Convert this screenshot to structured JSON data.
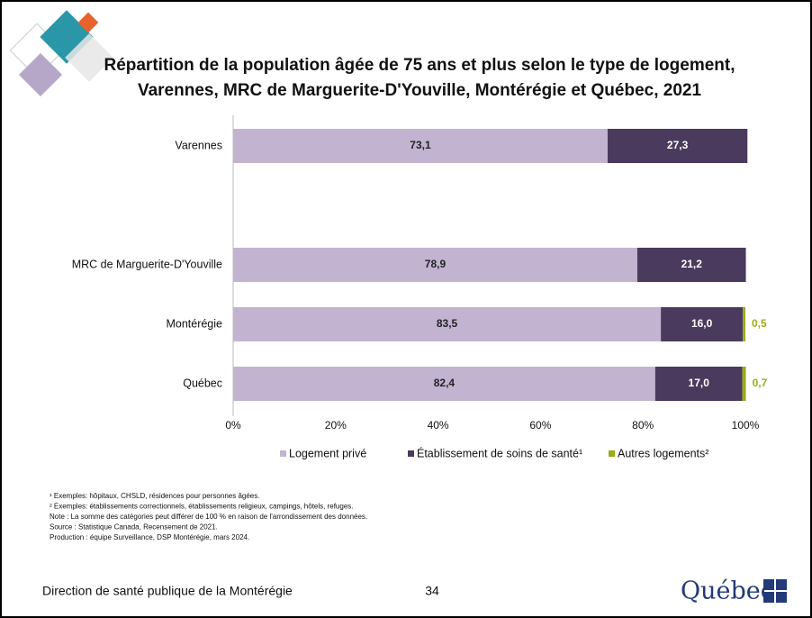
{
  "header": {
    "title_lines": [
      "Répartition de la population âgée de 75 ans et plus selon le type de logement,",
      "Varennes, MRC de Marguerite-D'Youville, Montérégie et Québec, 2021"
    ]
  },
  "chart_data": {
    "type": "stacked-bar-horizontal",
    "categories": [
      "Varennes",
      null,
      "MRC de Marguerite-D'Youville",
      "Montérégie",
      "Québec"
    ],
    "series": [
      {
        "name": "Logement privé",
        "color": "#c2b4d1",
        "values": [
          73.1,
          null,
          78.9,
          83.5,
          82.4
        ],
        "value_labels": [
          "73,1",
          null,
          "78,9",
          "83,5",
          "82,4"
        ],
        "label_color": "#222222"
      },
      {
        "name": "Établissement de soins de santé¹",
        "color": "#4a3a5e",
        "values": [
          27.3,
          null,
          21.2,
          16.0,
          17.0
        ],
        "value_labels": [
          "27,3",
          null,
          "21,2",
          "16,0",
          "17,0"
        ],
        "label_color": "#ffffff"
      },
      {
        "name": "Autres logements²",
        "color": "#9aac16",
        "values": [
          null,
          null,
          null,
          0.5,
          0.7
        ],
        "value_labels": [
          null,
          null,
          null,
          "0,5",
          "0,7"
        ],
        "label_color": "#9aac16"
      }
    ],
    "xlim": [
      0,
      100
    ],
    "xticks": [
      {
        "value": 0,
        "label": "0%"
      },
      {
        "value": 20,
        "label": "20%"
      },
      {
        "value": 40,
        "label": "40%"
      },
      {
        "value": 60,
        "label": "60%"
      },
      {
        "value": 80,
        "label": "80%"
      },
      {
        "value": 100,
        "label": "100%"
      }
    ],
    "legend": "bottom"
  },
  "notes": [
    "¹ Exemples: hôpitaux, CHSLD, résidences pour personnes âgées.",
    "² Exemples: établissements correctionnels, établissements religieux, campings, hôtels, refuges.",
    "Note : La somme des catégories peut différer de 100 % en raison de l'arrondissement des données.",
    "Source : Statistique Canada, Recensement de 2021.",
    "Production : équipe Surveillance, DSP Montérégie, mars 2024."
  ],
  "footer": {
    "organization": "Direction de santé publique de la Montérégie",
    "page": "34",
    "logo": "Québec"
  }
}
